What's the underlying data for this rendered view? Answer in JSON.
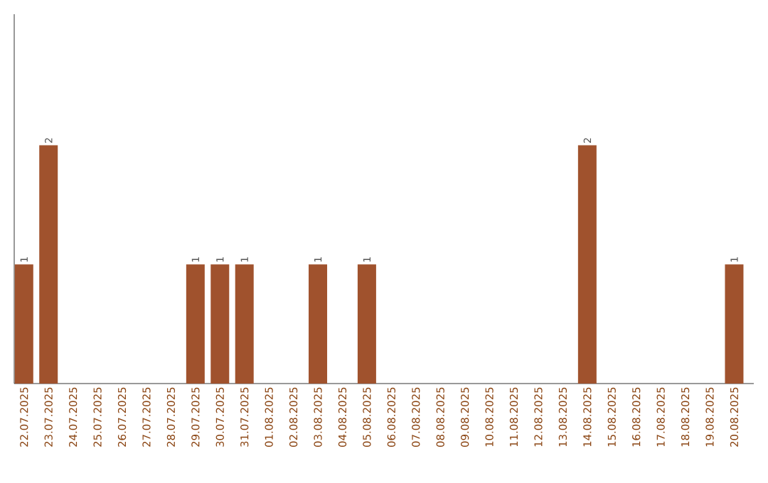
{
  "chart_data": {
    "type": "bar",
    "categories": [
      "22.07.2025",
      "23.07.2025",
      "24.07.2025",
      "25.07.2025",
      "26.07.2025",
      "27.07.2025",
      "28.07.2025",
      "29.07.2025",
      "30.07.2025",
      "31.07.2025",
      "01.08.2025",
      "02.08.2025",
      "03.08.2025",
      "04.08.2025",
      "05.08.2025",
      "06.08.2025",
      "07.08.2025",
      "08.08.2025",
      "09.08.2025",
      "10.08.2025",
      "11.08.2025",
      "12.08.2025",
      "13.08.2025",
      "14.08.2025",
      "15.08.2025",
      "16.08.2025",
      "17.08.2025",
      "18.08.2025",
      "19.08.2025",
      "20.08.2025"
    ],
    "values": [
      1,
      2,
      0,
      0,
      0,
      0,
      0,
      1,
      1,
      1,
      0,
      0,
      1,
      0,
      1,
      0,
      0,
      0,
      0,
      0,
      0,
      0,
      0,
      2,
      0,
      0,
      0,
      0,
      0,
      1
    ],
    "value_labels": [
      "1",
      "2",
      null,
      null,
      null,
      null,
      null,
      "1",
      "1",
      "1",
      null,
      null,
      "1",
      null,
      "1",
      null,
      null,
      null,
      null,
      null,
      null,
      null,
      null,
      "2",
      null,
      null,
      null,
      null,
      null,
      "1"
    ],
    "color": "#a0522d",
    "ylim": [
      0,
      3.1
    ],
    "tick_labels": "x"
  }
}
